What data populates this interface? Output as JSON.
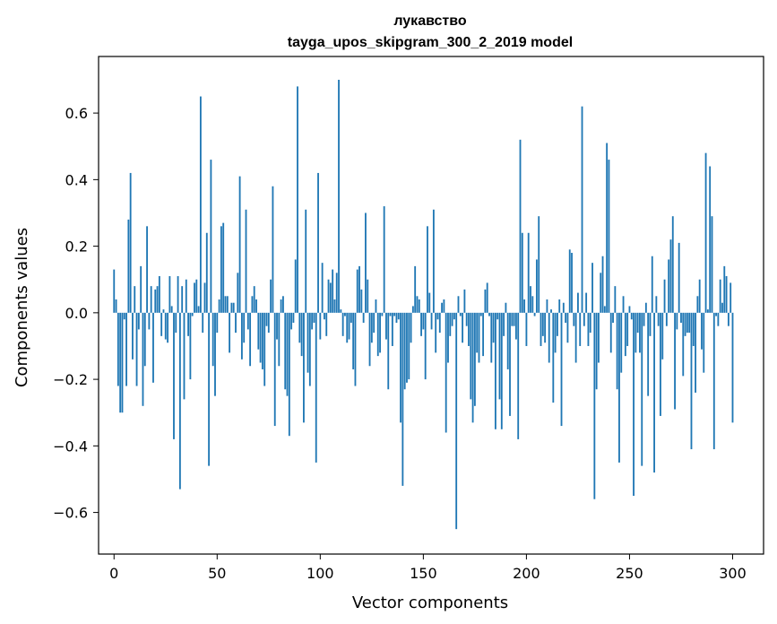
{
  "chart_data": {
    "type": "bar",
    "title": "лукавство",
    "subtitle": "tayga_upos_skipgram_300_2_2019 model",
    "xlabel": "Vector components",
    "ylabel": "Components values",
    "xlim": [
      -7.5,
      315
    ],
    "ylim": [
      -0.725,
      0.77
    ],
    "xticks": [
      0,
      50,
      100,
      150,
      200,
      250,
      300
    ],
    "xtick_labels": [
      "0",
      "50",
      "100",
      "150",
      "200",
      "250",
      "300"
    ],
    "yticks": [
      -0.6,
      -0.4,
      -0.2,
      0.0,
      0.2,
      0.4,
      0.6
    ],
    "ytick_labels": [
      "−0.6",
      "−0.4",
      "−0.2",
      "0.0",
      "0.2",
      "0.4",
      "0.6"
    ],
    "bar_color": "#1f77b4",
    "grid": false,
    "values": [
      0.13,
      0.04,
      -0.22,
      -0.3,
      -0.3,
      -0.02,
      -0.22,
      0.28,
      0.42,
      -0.14,
      0.08,
      -0.22,
      -0.05,
      0.14,
      -0.28,
      -0.16,
      0.26,
      -0.05,
      0.08,
      -0.21,
      0.07,
      0.08,
      0.11,
      -0.07,
      0.01,
      -0.08,
      -0.09,
      0.11,
      0.02,
      -0.38,
      -0.06,
      0.11,
      -0.53,
      0.08,
      -0.26,
      0.1,
      -0.07,
      -0.2,
      -0.01,
      0.09,
      0.1,
      0.02,
      0.65,
      -0.06,
      0.09,
      0.24,
      -0.46,
      0.46,
      -0.16,
      -0.25,
      -0.06,
      0.04,
      0.26,
      0.27,
      0.05,
      0.05,
      -0.12,
      0.03,
      0.03,
      -0.06,
      0.12,
      0.41,
      -0.14,
      -0.09,
      0.31,
      -0.05,
      -0.16,
      0.05,
      0.08,
      0.04,
      -0.11,
      -0.15,
      -0.17,
      -0.22,
      -0.04,
      -0.06,
      0.1,
      0.38,
      -0.34,
      -0.08,
      -0.16,
      0.04,
      0.05,
      -0.23,
      -0.25,
      -0.37,
      -0.05,
      -0.03,
      0.16,
      0.68,
      -0.09,
      -0.13,
      -0.33,
      0.31,
      -0.18,
      -0.22,
      -0.05,
      -0.03,
      -0.45,
      0.42,
      -0.08,
      0.15,
      -0.02,
      -0.07,
      0.1,
      0.09,
      0.13,
      0.04,
      0.12,
      0.7,
      0.01,
      -0.07,
      -0.01,
      -0.09,
      -0.08,
      -0.03,
      -0.17,
      -0.22,
      0.13,
      0.14,
      0.07,
      -0.03,
      0.3,
      0.1,
      -0.16,
      -0.09,
      -0.06,
      0.04,
      -0.13,
      -0.12,
      -0.01,
      0.32,
      -0.08,
      -0.23,
      -0.01,
      -0.1,
      -0.01,
      -0.03,
      -0.02,
      -0.33,
      -0.52,
      -0.23,
      -0.21,
      -0.2,
      -0.09,
      0.02,
      0.14,
      0.05,
      0.04,
      -0.07,
      -0.05,
      -0.2,
      0.26,
      0.06,
      -0.05,
      0.31,
      -0.12,
      -0.02,
      -0.06,
      0.03,
      0.04,
      -0.36,
      -0.15,
      -0.07,
      -0.04,
      -0.02,
      -0.65,
      0.05,
      -0.01,
      -0.09,
      0.07,
      -0.04,
      -0.1,
      -0.26,
      -0.33,
      -0.28,
      -0.12,
      -0.15,
      -0.01,
      -0.13,
      0.07,
      0.09,
      -0.01,
      -0.15,
      -0.09,
      -0.35,
      -0.02,
      -0.26,
      -0.35,
      -0.07,
      0.03,
      -0.17,
      -0.31,
      -0.04,
      -0.04,
      -0.08,
      -0.38,
      0.52,
      0.24,
      0.04,
      -0.1,
      0.24,
      0.08,
      0.05,
      -0.01,
      0.16,
      0.29,
      -0.1,
      -0.07,
      -0.09,
      0.04,
      -0.15,
      0.01,
      -0.27,
      -0.12,
      -0.07,
      0.04,
      -0.34,
      0.03,
      -0.03,
      -0.09,
      0.19,
      0.18,
      -0.04,
      -0.15,
      0.06,
      -0.1,
      0.62,
      -0.04,
      0.06,
      -0.1,
      -0.06,
      0.15,
      -0.56,
      -0.23,
      -0.15,
      0.12,
      0.17,
      0.02,
      0.51,
      0.46,
      -0.12,
      -0.03,
      0.08,
      -0.23,
      -0.45,
      -0.18,
      0.05,
      -0.13,
      -0.1,
      0.02,
      -0.02,
      -0.55,
      -0.12,
      -0.06,
      -0.12,
      -0.46,
      -0.04,
      0.03,
      -0.25,
      -0.07,
      0.17,
      -0.48,
      0.05,
      -0.04,
      -0.31,
      -0.14,
      0.1,
      -0.04,
      0.16,
      0.22,
      0.29,
      -0.29,
      -0.05,
      0.21,
      -0.03,
      -0.19,
      -0.07,
      -0.06,
      -0.06,
      -0.41,
      -0.1,
      -0.24,
      0.05,
      0.1,
      -0.11,
      -0.18,
      0.48,
      0.01,
      0.44,
      0.29,
      -0.41,
      -0.01,
      -0.04,
      0.1,
      0.03,
      0.14,
      0.11,
      -0.04,
      0.09,
      -0.33
    ]
  }
}
